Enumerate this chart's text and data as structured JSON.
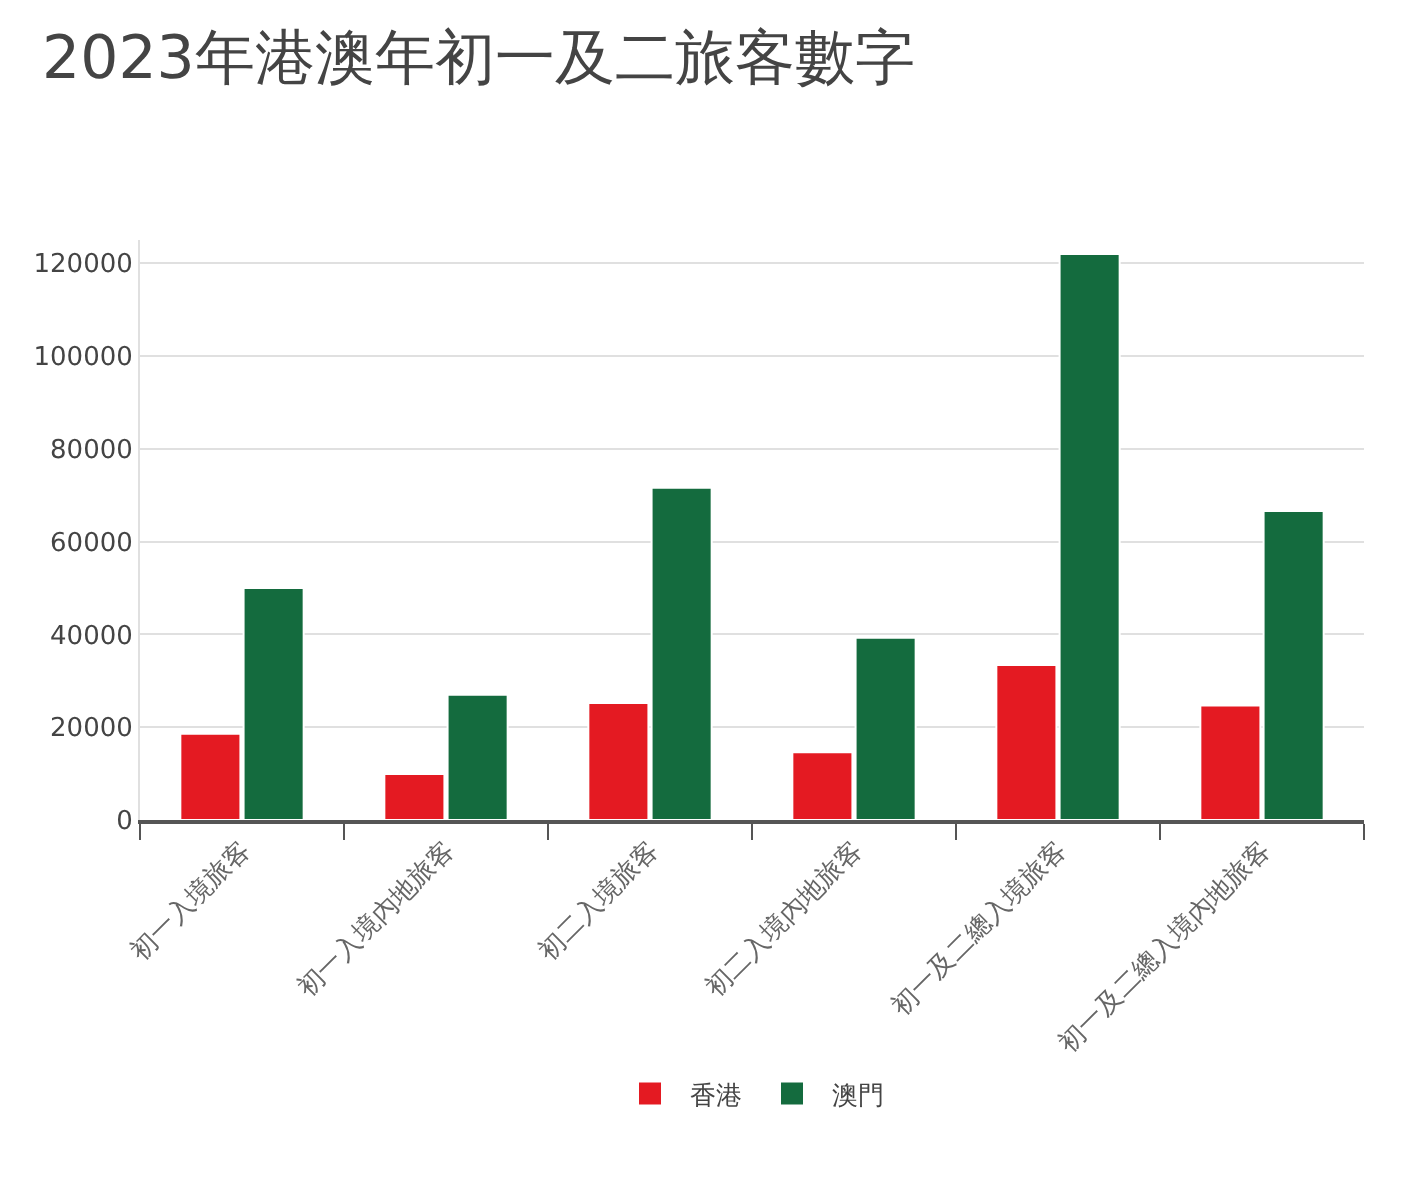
{
  "chart_data": {
    "type": "bar",
    "title": "2023年港澳年初一及二旅客數字",
    "categories": [
      "初一入境旅客",
      "初一入境內地旅客",
      "初二入境旅客",
      "初二入境內地旅客",
      "初一及二總入境旅客",
      "初一及二總入境內地旅客"
    ],
    "series": [
      {
        "name": "香港",
        "color": "#e41a22",
        "values": [
          18600,
          9900,
          25200,
          14600,
          33400,
          24700
        ]
      },
      {
        "name": "澳門",
        "color": "#146b3e",
        "values": [
          50000,
          27000,
          71600,
          39300,
          122000,
          66600
        ]
      }
    ],
    "ylim": [
      0,
      125000
    ],
    "yticks": [
      0,
      20000,
      40000,
      60000,
      80000,
      100000,
      120000
    ],
    "grid": "y",
    "legend": "bottom"
  }
}
